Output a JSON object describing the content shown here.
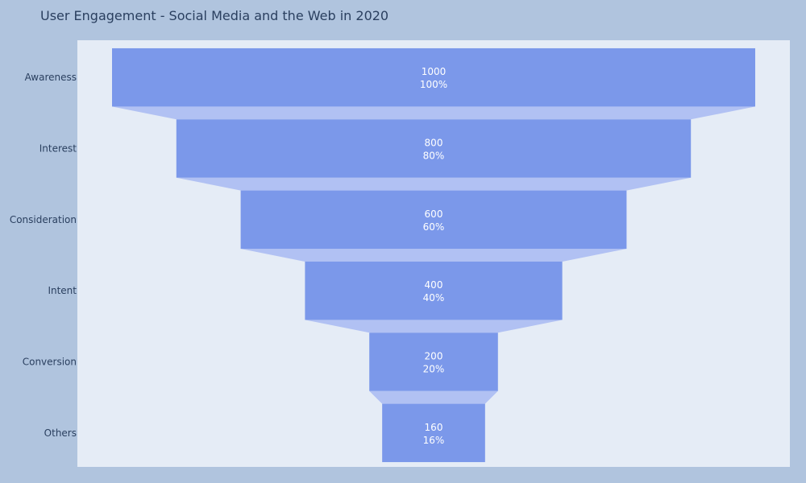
{
  "chart_data": {
    "type": "funnel",
    "title": "User Engagement - Social Media and the Web in 2020",
    "categories": [
      "Awareness",
      "Interest",
      "Consideration",
      "Intent",
      "Conversion",
      "Others"
    ],
    "values": [
      1000,
      800,
      600,
      400,
      200,
      160
    ],
    "percent_labels": [
      "100%",
      "80%",
      "60%",
      "40%",
      "20%",
      "16%"
    ],
    "xlim": [
      -1000,
      1000
    ]
  },
  "colors": {
    "background": "#b0c4de",
    "plot_background": "#e5ecf6",
    "bar": "#7b98ea",
    "connector": "#b1c1f3",
    "text": "#2a3f5f",
    "label": "#ffffff"
  }
}
